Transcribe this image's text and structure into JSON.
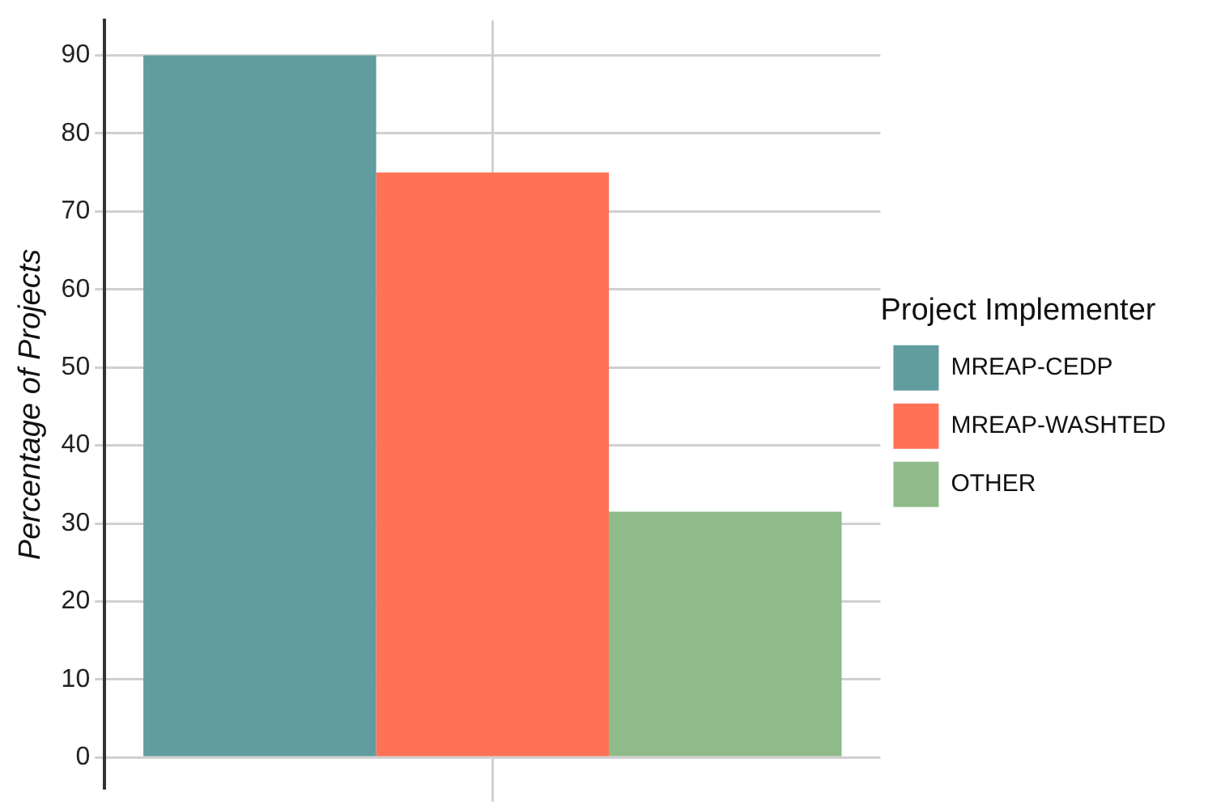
{
  "chart_data": {
    "type": "bar",
    "ylabel": "Percentage of Projects",
    "legend_title": "Project Implementer",
    "categories": [
      null
    ],
    "series": [
      {
        "name": "MREAP-CEDP",
        "color": "#619c9e",
        "values": [
          90
        ]
      },
      {
        "name": "MREAP-WASHTED",
        "color": "#ff7256",
        "values": [
          75
        ]
      },
      {
        "name": "OTHER",
        "color": "#8fbb8b",
        "values": [
          31.5
        ]
      }
    ],
    "ylim": [
      -4,
      94.5
    ],
    "yticks": [
      0,
      10,
      20,
      30,
      40,
      50,
      60,
      70,
      80,
      90
    ],
    "grid": true,
    "legend": "right",
    "tick_labels": "y"
  }
}
